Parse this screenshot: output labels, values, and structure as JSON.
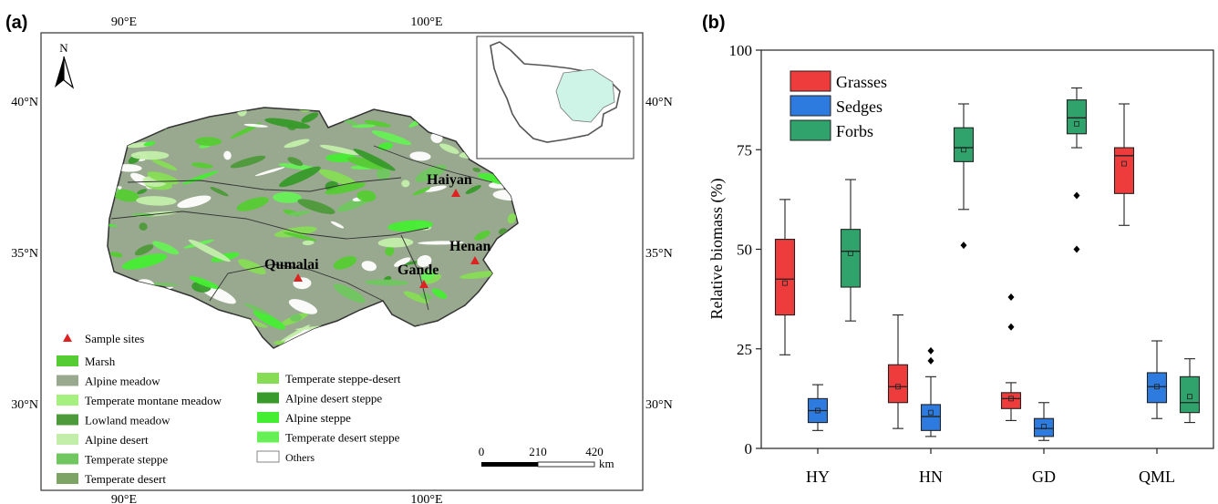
{
  "panel_a": {
    "label": "(a)",
    "lon_labels": [
      "90°E",
      "100°E"
    ],
    "lat_labels": [
      "40°N",
      "35°N",
      "30°N"
    ],
    "north_label": "N",
    "sites": [
      {
        "name": "Haiyan"
      },
      {
        "name": "Henan"
      },
      {
        "name": "Qumalai"
      },
      {
        "name": "Gande"
      }
    ],
    "legend": {
      "sample_sites": "Sample sites",
      "left_items": [
        {
          "label": "Marsh",
          "color": "#55cc33"
        },
        {
          "label": "Alpine meadow",
          "color": "#99a98f"
        },
        {
          "label": "Temperate montane meadow",
          "color": "#a6f07f"
        },
        {
          "label": "Lowland meadow",
          "color": "#4d9a3a"
        },
        {
          "label": "Alpine desert",
          "color": "#c3eeaa"
        },
        {
          "label": "Temperate steppe",
          "color": "#70c760"
        },
        {
          "label": "Temperate desert",
          "color": "#7ea465"
        }
      ],
      "right_items": [
        {
          "label": "Temperate steppe-desert",
          "color": "#86dd55"
        },
        {
          "label": "Alpine desert steppe",
          "color": "#379a2a"
        },
        {
          "label": "Alpine steppe",
          "color": "#44ee33"
        },
        {
          "label": "Temperate desert steppe",
          "color": "#66f055"
        },
        {
          "label": "Others",
          "color": "#ffffff"
        }
      ]
    },
    "scale": {
      "ticks": [
        "0",
        "210",
        "420"
      ],
      "unit": "km"
    }
  },
  "panel_b": {
    "label": "(b)"
  },
  "chart_data": {
    "type": "box",
    "ylabel": "Relative biomass (%)",
    "ylim": [
      0,
      100
    ],
    "yticks": [
      "0",
      "25",
      "50",
      "75",
      "100"
    ],
    "categories": [
      "HY",
      "HN",
      "GD",
      "QML"
    ],
    "legend_position": "top-left",
    "series": [
      {
        "name": "Grasses",
        "color": "#ee3b3b",
        "boxes": [
          {
            "min": 23.5,
            "q1": 33.5,
            "median": 42.5,
            "q3": 52.5,
            "max": 62.5,
            "mean": 41.5,
            "outliers": []
          },
          {
            "min": 5,
            "q1": 11.5,
            "median": 15.5,
            "q3": 21,
            "max": 33.5,
            "mean": 15.5,
            "outliers": []
          },
          {
            "min": 7,
            "q1": 10,
            "median": 12.5,
            "q3": 14,
            "max": 16.5,
            "mean": 12.5,
            "outliers": [
              30.5,
              38
            ]
          },
          {
            "min": 56,
            "q1": 64,
            "median": 73.5,
            "q3": 75.5,
            "max": 86.5,
            "mean": 71.5,
            "outliers": []
          }
        ]
      },
      {
        "name": "Sedges",
        "color": "#2e7be0",
        "boxes": [
          {
            "min": 4.5,
            "q1": 6.5,
            "median": 9.5,
            "q3": 12.5,
            "max": 16,
            "mean": 9.5,
            "outliers": []
          },
          {
            "min": 3,
            "q1": 4.5,
            "median": 8,
            "q3": 11,
            "max": 18,
            "mean": 9,
            "outliers": [
              22,
              24.5
            ]
          },
          {
            "min": 2,
            "q1": 3,
            "median": 5,
            "q3": 7.5,
            "max": 11.5,
            "mean": 5.5,
            "outliers": []
          },
          {
            "min": 7.5,
            "q1": 11.5,
            "median": 15.5,
            "q3": 19,
            "max": 27,
            "mean": 15.5,
            "outliers": []
          }
        ]
      },
      {
        "name": "Forbs",
        "color": "#2fa36b",
        "boxes": [
          {
            "min": 32,
            "q1": 40.5,
            "median": 49.5,
            "q3": 55,
            "max": 67.5,
            "mean": 49,
            "outliers": []
          },
          {
            "min": 60,
            "q1": 72,
            "median": 75.5,
            "q3": 80.5,
            "max": 86.5,
            "mean": 75,
            "outliers": [
              51
            ]
          },
          {
            "min": 75.5,
            "q1": 79,
            "median": 83,
            "q3": 87.5,
            "max": 90.5,
            "mean": 81.5,
            "outliers": [
              50,
              63.5
            ]
          },
          {
            "min": 6.5,
            "q1": 9,
            "median": 11.5,
            "q3": 18,
            "max": 22.5,
            "mean": 13,
            "outliers": []
          }
        ]
      }
    ]
  }
}
